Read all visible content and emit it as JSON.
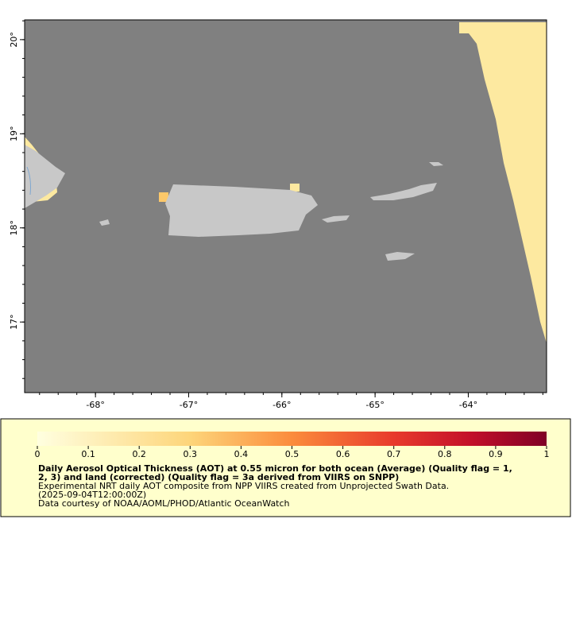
{
  "map": {
    "xlim": [
      -68.76,
      -63.16
    ],
    "ylim": [
      16.25,
      20.21
    ],
    "xticks": [
      {
        "value": -68,
        "label": "-68°"
      },
      {
        "value": -67,
        "label": "-67°"
      },
      {
        "value": -66,
        "label": "-66°"
      },
      {
        "value": -65,
        "label": "-65°"
      },
      {
        "value": -64,
        "label": "-64°"
      }
    ],
    "yticks": [
      {
        "value": 17,
        "label": "17°"
      },
      {
        "value": 18,
        "label": "18°"
      },
      {
        "value": 19,
        "label": "19°"
      },
      {
        "value": 20,
        "label": "20°"
      }
    ]
  },
  "legend": {
    "colorbar_lim": [
      0,
      1
    ],
    "colorbar_ticks": [
      0,
      0.1,
      0.2,
      0.3,
      0.4,
      0.5,
      0.6,
      0.7,
      0.8,
      0.9,
      1
    ],
    "title": [
      "Daily Aerosol Optical Thickness (AOT) at 0.55 micron for both ocean (Average) (Quality flag = 1,",
      "2, 3) and land (corrected) (Quality flag = 3a derived from VIIRS on SNPP)"
    ],
    "notes": [
      "Experimental NRT daily AOT composite from NPP VIIRS created from Unprojected Swath Data.",
      "(2025-09-04T12:00:00Z)",
      "Data courtesy of NOAA/AOML/PHOD/Atlantic OceanWatch"
    ]
  }
}
